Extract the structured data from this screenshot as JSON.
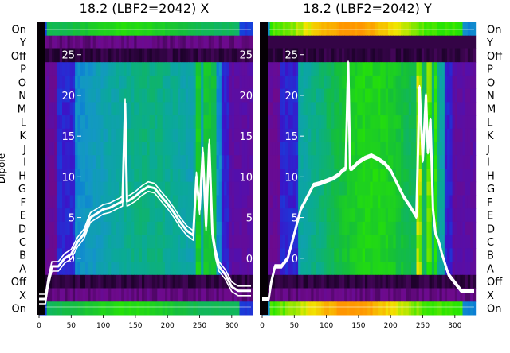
{
  "chart_data": {
    "type": "heatmap",
    "ylabel": "Dipole",
    "row_labels": [
      "On",
      "Y",
      "Off",
      "P",
      "O",
      "N",
      "M",
      "L",
      "K",
      "J",
      "I",
      "H",
      "G",
      "F",
      "E",
      "D",
      "C",
      "B",
      "A",
      "Off",
      "X",
      "On"
    ],
    "x_ticks": [
      0,
      50,
      100,
      150,
      200,
      250,
      300
    ],
    "xlim": [
      0,
      330
    ],
    "overlay_ylim": [
      -5,
      28
    ],
    "overlay_yticks": [
      0,
      5,
      10,
      15,
      20,
      25
    ],
    "panels": [
      {
        "title": "18.2 (LBF2=2042) X",
        "overlay_x": [
          0,
          10,
          14,
          20,
          30,
          40,
          50,
          60,
          70,
          80,
          90,
          100,
          110,
          120,
          130,
          134,
          137,
          140,
          150,
          160,
          170,
          180,
          190,
          200,
          210,
          220,
          230,
          240,
          245,
          250,
          255,
          260,
          265,
          270,
          275,
          280,
          290,
          300,
          310,
          320,
          330
        ],
        "overlay_y": [
          -5,
          -5,
          -3,
          -1,
          -1,
          0,
          0.5,
          2,
          3,
          5,
          5.5,
          6,
          6.2,
          6.6,
          7,
          19,
          7,
          7.1,
          7.6,
          8.3,
          8.8,
          8.6,
          7.6,
          6.7,
          5.6,
          4.4,
          3.4,
          2.8,
          10,
          6,
          13,
          4,
          14,
          3,
          0.5,
          -1,
          -2,
          -3.5,
          -4,
          -4,
          -4
        ]
      },
      {
        "title": "18.2 (LBF2=2042) Y",
        "overlay_x": [
          0,
          10,
          14,
          20,
          30,
          40,
          50,
          60,
          70,
          80,
          90,
          100,
          110,
          120,
          125,
          130,
          134,
          137,
          140,
          150,
          160,
          170,
          180,
          190,
          200,
          210,
          220,
          230,
          240,
          245,
          250,
          255,
          258,
          262,
          266,
          270,
          275,
          280,
          290,
          300,
          310,
          320,
          330
        ],
        "overlay_y": [
          -5,
          -5,
          -3,
          -1,
          -1,
          0,
          3,
          6,
          7.5,
          9,
          9.2,
          9.5,
          9.8,
          10.3,
          10.8,
          11,
          24,
          11,
          11,
          11.8,
          12.3,
          12.6,
          12.2,
          11.7,
          10.8,
          9.2,
          7.6,
          6.4,
          5.1,
          21,
          12,
          20,
          13,
          17,
          6,
          3,
          2,
          0.5,
          -2,
          -3,
          -4,
          -4,
          -4
        ]
      }
    ]
  },
  "colors": {
    "heat_low": "#7a0d8f",
    "heat_mid": "#0fa0b4",
    "heat_high": "#00e800",
    "overlay_line": "#ffffff"
  }
}
